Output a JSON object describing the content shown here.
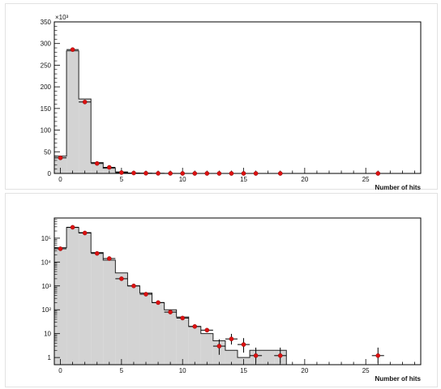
{
  "chart_data": [
    {
      "type": "histogram",
      "scale": "linear",
      "xlabel": "Number of hits",
      "ylabel": "",
      "y_multiplier": "×10³",
      "xlim": [
        -0.5,
        29.5
      ],
      "ylim": [
        0,
        350
      ],
      "x_ticks": [
        "0",
        "5",
        "10",
        "15",
        "20",
        "25"
      ],
      "y_ticks": [
        "0",
        "50",
        "100",
        "150",
        "200",
        "250",
        "300",
        "350"
      ],
      "grid": false,
      "series": [
        {
          "kind": "histogram-filled",
          "fill": "#d3d3d3",
          "line": "#222222",
          "x": [
            0,
            1,
            2,
            3,
            4,
            5,
            6,
            7,
            8,
            9,
            10,
            11,
            12,
            13,
            14,
            15,
            16,
            17,
            18
          ],
          "values": [
            40,
            283,
            172,
            25,
            12,
            3.5,
            1,
            0.5,
            0.2,
            0.1,
            0.05,
            0.02,
            0.01,
            0.005,
            0.002,
            0.001,
            0.002,
            0.002,
            0.002
          ]
        },
        {
          "kind": "points",
          "color": "#dd1111",
          "x": [
            0,
            1,
            2,
            3,
            4,
            5,
            6,
            7,
            8,
            9,
            10,
            11,
            12,
            13,
            14,
            15,
            16,
            18,
            26
          ],
          "values": [
            36,
            286,
            165,
            23,
            14,
            2,
            1,
            0.45,
            0.2,
            0.08,
            0.045,
            0.02,
            0.014,
            0.003,
            0.006,
            0.0035,
            0.0012,
            0.0012,
            0.0012
          ],
          "errors": [
            0,
            0,
            0,
            0,
            0,
            0,
            0,
            0,
            0,
            0,
            0,
            0,
            0,
            0,
            0,
            0,
            0,
            0,
            0
          ]
        }
      ]
    },
    {
      "type": "histogram",
      "scale": "log",
      "xlabel": "Number of hits",
      "ylabel": "",
      "xlim": [
        -0.5,
        29.5
      ],
      "ylim": [
        0.5,
        700000
      ],
      "x_ticks": [
        "0",
        "5",
        "10",
        "15",
        "20",
        "25"
      ],
      "y_ticks": [
        "1",
        "10",
        "10²",
        "10³",
        "10⁴",
        "10⁵"
      ],
      "y_tick_values": [
        1,
        10,
        100,
        1000,
        10000,
        100000
      ],
      "grid": false,
      "series": [
        {
          "kind": "histogram-filled",
          "fill": "#d3d3d3",
          "line": "#222222",
          "x": [
            0,
            1,
            2,
            3,
            4,
            5,
            6,
            7,
            8,
            9,
            10,
            11,
            12,
            13,
            14,
            15,
            16,
            17,
            18
          ],
          "values": [
            40000,
            283000,
            172000,
            25000,
            12000,
            3500,
            1000,
            500,
            200,
            100,
            50,
            20,
            10,
            5,
            2,
            1,
            2,
            2,
            2
          ]
        },
        {
          "kind": "points",
          "color": "#dd1111",
          "x": [
            0,
            1,
            2,
            3,
            4,
            5,
            6,
            7,
            8,
            9,
            10,
            11,
            12,
            13,
            14,
            15,
            16,
            18,
            26
          ],
          "values": [
            36000,
            286000,
            165000,
            23000,
            14000,
            2000,
            1000,
            450,
            200,
            80,
            45,
            20,
            14,
            3,
            6,
            3.5,
            1.2,
            1.2,
            1.2
          ],
          "err_low": [
            0,
            0,
            0,
            0,
            0,
            0,
            0,
            0,
            0,
            0,
            0,
            0,
            0,
            1.7,
            2.5,
            1.9,
            0.6,
            0.6,
            0.6
          ],
          "err_high": [
            0,
            0,
            0,
            0,
            0,
            0,
            0,
            0,
            0,
            0,
            0,
            0,
            0,
            2.8,
            3.8,
            3.0,
            1.4,
            1.4,
            1.4
          ]
        }
      ]
    }
  ]
}
